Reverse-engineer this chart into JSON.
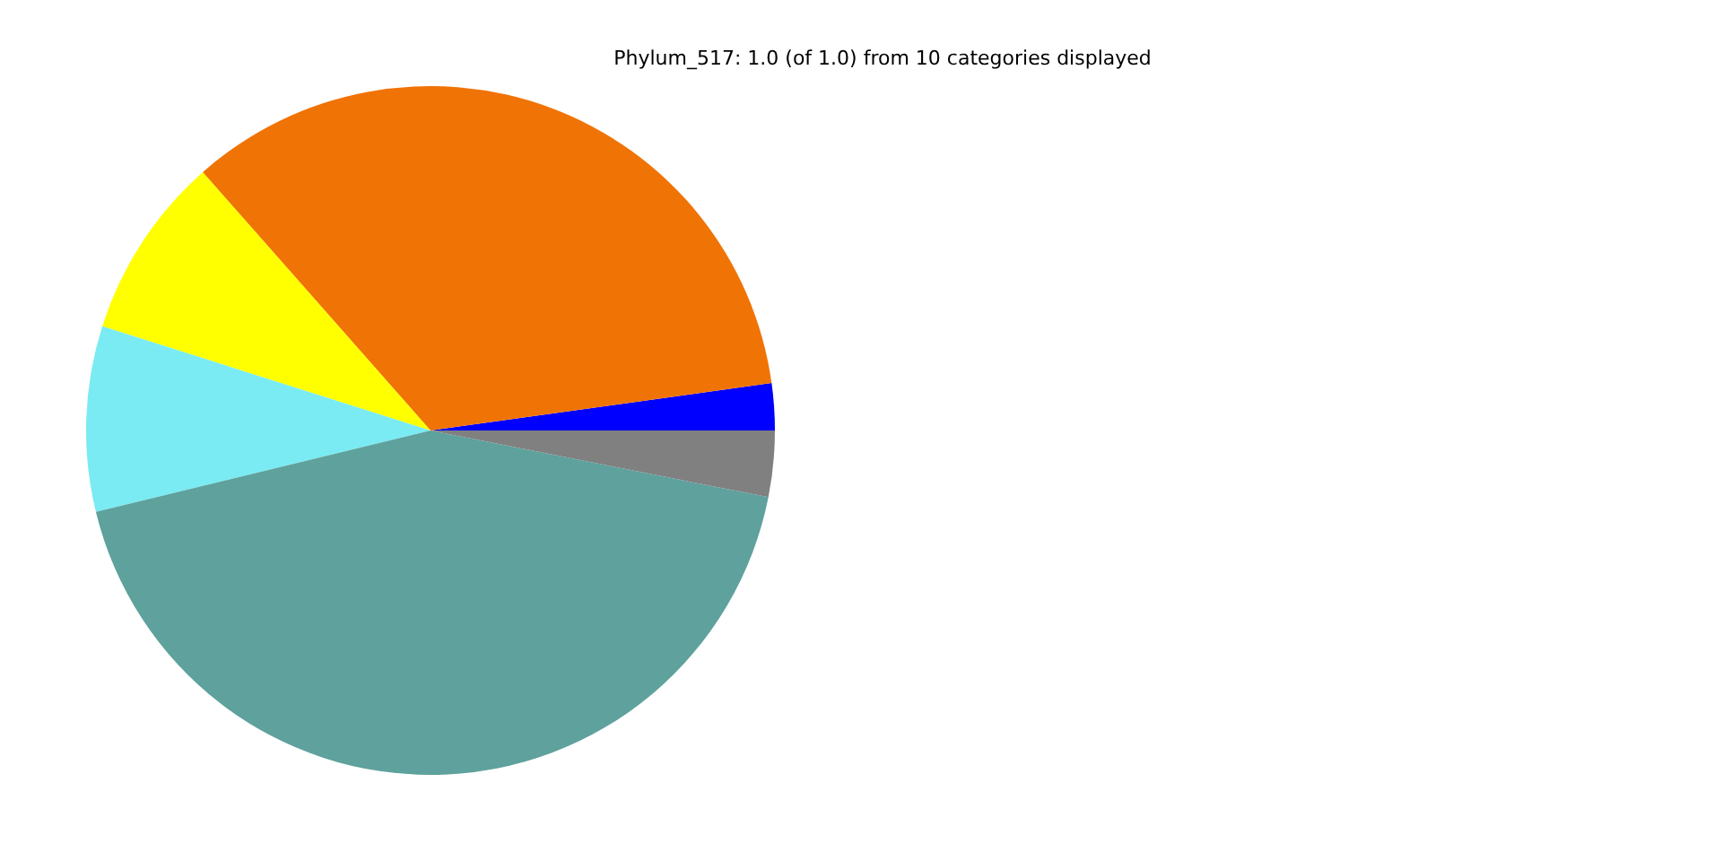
{
  "chart_data": {
    "type": "pie",
    "title": "Phylum_517: 1.0 (of 1.0) from 10 categories displayed",
    "categories": [
      null,
      null,
      null,
      null,
      null,
      null
    ],
    "values": [
      2.2,
      34.3,
      8.6,
      8.7,
      43.1,
      3.1
    ],
    "colors": [
      "#0000ff",
      "#f07305",
      "#ffff00",
      "#7aebf2",
      "#5ea19d",
      "#808080"
    ],
    "legend": false
  }
}
